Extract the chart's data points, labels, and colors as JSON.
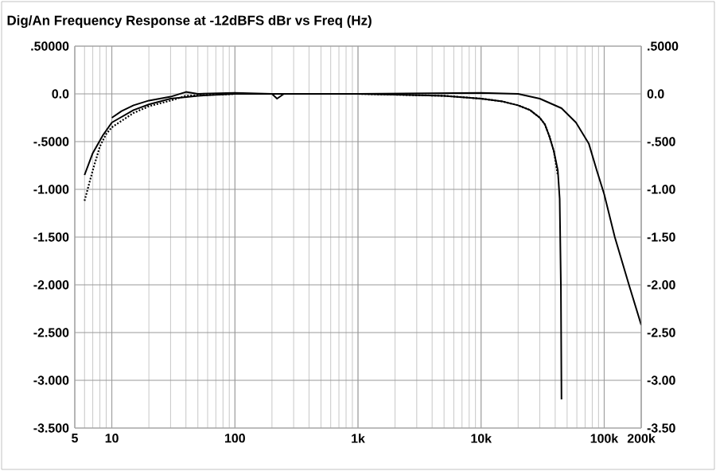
{
  "chart_data": {
    "type": "line",
    "title": "Dig/An Frequency Response at -12dBFS  dBr vs Freq (Hz)",
    "log": "x",
    "grid": true,
    "xlim": [
      5,
      200000
    ],
    "xticks": [
      5,
      10,
      100,
      {
        "value": 1000,
        "label": "1k"
      },
      {
        "value": 10000,
        "label": "10k"
      },
      {
        "value": 100000,
        "label": "100k"
      },
      {
        "value": 200000,
        "label": "200k"
      }
    ],
    "ylim": [
      -3.5,
      0.5
    ],
    "yticks": [
      {
        "value": 0.5,
        "label": ".50000"
      },
      {
        "value": 0,
        "label": "0.0"
      },
      {
        "value": -0.5,
        "label": "-.5000"
      },
      {
        "value": -1,
        "label": "-1.000"
      },
      {
        "value": -1.5,
        "label": "-1.500"
      },
      {
        "value": -2,
        "label": "-2.000"
      },
      {
        "value": -2.5,
        "label": "-2.500"
      },
      {
        "value": -3,
        "label": "-3.000"
      },
      {
        "value": -3.5,
        "label": "-3.500"
      }
    ],
    "y2lim": [
      -3.5,
      0.5
    ],
    "y2ticks": [
      {
        "value": 0.5,
        "label": ".5000"
      },
      {
        "value": 0,
        "label": "0.0"
      },
      {
        "value": -0.5,
        "label": "-.500"
      },
      {
        "value": -1,
        "label": "-1.00"
      },
      {
        "value": -1.5,
        "label": "-1.50"
      },
      {
        "value": -2,
        "label": "-2.00"
      },
      {
        "value": -2.5,
        "label": "-2.50"
      },
      {
        "value": -3,
        "label": "-3.00"
      },
      {
        "value": -3.5,
        "label": "-3.50"
      }
    ],
    "series": [
      {
        "color": "#000000",
        "line_style": "solid",
        "x": [
          6,
          7,
          8.5,
          10,
          15,
          20,
          30,
          50,
          100,
          1000,
          5000,
          10000,
          15000,
          20000,
          25000,
          30000,
          33000,
          36000,
          39000,
          42000,
          43500,
          44500,
          45000
        ],
        "values": [
          -0.85,
          -0.62,
          -0.43,
          -0.3,
          -0.17,
          -0.11,
          -0.05,
          -0.02,
          0,
          0,
          -0.02,
          -0.05,
          -0.08,
          -0.12,
          -0.17,
          -0.25,
          -0.32,
          -0.45,
          -0.6,
          -0.8,
          -1.1,
          -2.0,
          -3.2
        ]
      },
      {
        "color": "#000000",
        "line_style": "dotted",
        "x": [
          6,
          7,
          8,
          9,
          10,
          15,
          20,
          30,
          40,
          100,
          1000,
          5000,
          10000,
          15000,
          20000,
          25000,
          30000,
          33000,
          36000,
          39000,
          42000
        ],
        "values": [
          -1.12,
          -0.8,
          -0.55,
          -0.42,
          -0.35,
          -0.2,
          -0.13,
          -0.07,
          -0.02,
          0,
          0,
          -0.02,
          -0.05,
          -0.08,
          -0.12,
          -0.17,
          -0.25,
          -0.32,
          -0.45,
          -0.6,
          -0.85
        ]
      },
      {
        "color": "#000000",
        "line_style": "solid",
        "x": [
          10,
          12,
          15,
          20,
          30,
          40,
          50,
          100,
          200,
          220,
          250,
          1000,
          10000,
          20000,
          30000,
          45000,
          59000,
          75000,
          87000,
          100000,
          122000,
          159000,
          200000
        ],
        "values": [
          -0.25,
          -0.18,
          -0.12,
          -0.07,
          -0.03,
          0.02,
          0,
          0.01,
          0,
          -0.05,
          0,
          0,
          0.01,
          0,
          -0.05,
          -0.15,
          -0.3,
          -0.52,
          -0.8,
          -1.05,
          -1.5,
          -2.0,
          -2.42
        ]
      }
    ]
  }
}
